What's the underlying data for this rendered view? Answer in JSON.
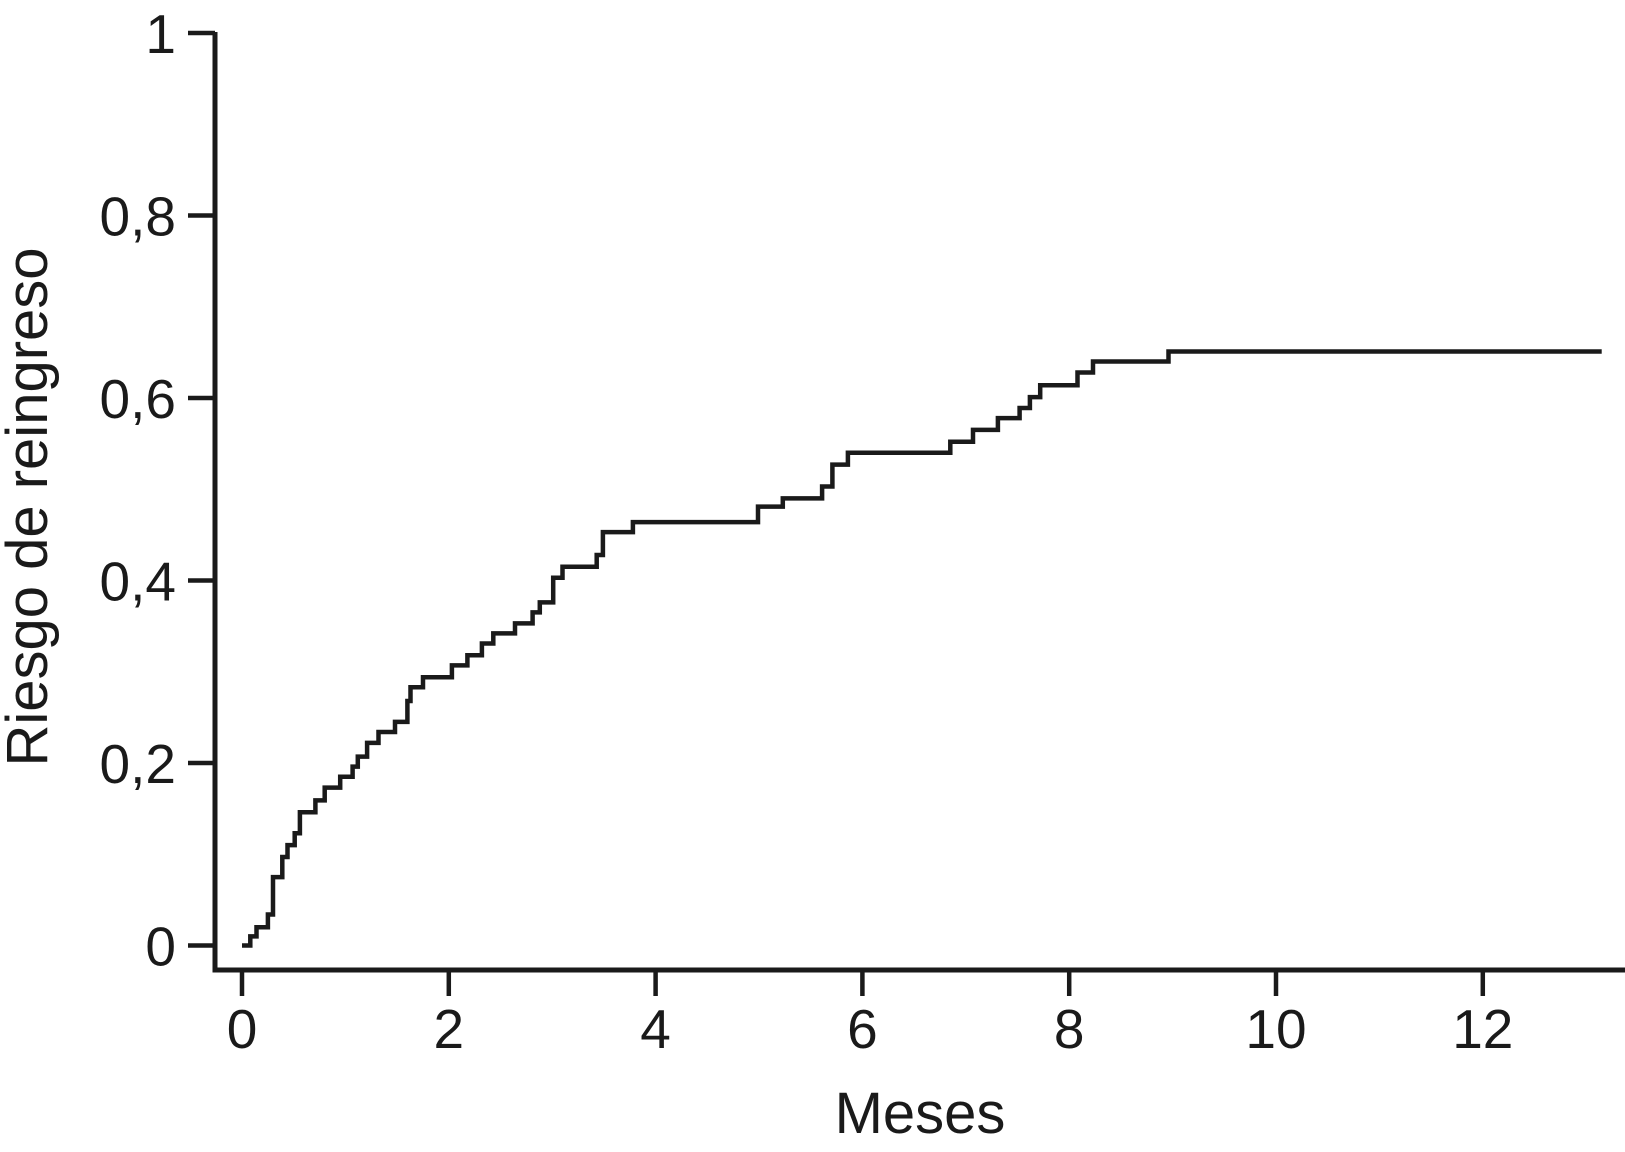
{
  "figure": {
    "background": "#ffffff",
    "ink_color": "#1a1a1a"
  },
  "chart_data": {
    "type": "line",
    "subtype": "step-post-cumulative-incidence",
    "title": "",
    "xlabel": "Meses",
    "ylabel": "Riesgo de reingreso",
    "xlim": [
      0,
      13.4
    ],
    "ylim": [
      0,
      1
    ],
    "grid": false,
    "legend_position": "none",
    "x_ticks": [
      {
        "v": 0,
        "label": "0"
      },
      {
        "v": 2,
        "label": "2"
      },
      {
        "v": 4,
        "label": "4"
      },
      {
        "v": 6,
        "label": "6"
      },
      {
        "v": 8,
        "label": "8"
      },
      {
        "v": 10,
        "label": "10"
      },
      {
        "v": 12,
        "label": "12"
      }
    ],
    "y_ticks": [
      {
        "v": 0,
        "label": "0"
      },
      {
        "v": 0.2,
        "label": "0,2"
      },
      {
        "v": 0.4,
        "label": "0,4"
      },
      {
        "v": 0.6,
        "label": "0,6"
      },
      {
        "v": 0.8,
        "label": "0,8"
      },
      {
        "v": 1,
        "label": "1"
      }
    ],
    "series": [
      {
        "name": "Riesgo de reingreso",
        "step": "post",
        "x": [
          0,
          0.08,
          0.14,
          0.25,
          0.3,
          0.39,
          0.44,
          0.51,
          0.56,
          0.71,
          0.8,
          0.95,
          1.07,
          1.12,
          1.21,
          1.32,
          1.48,
          1.6,
          1.63,
          1.75,
          2.03,
          2.18,
          2.32,
          2.43,
          2.64,
          2.81,
          2.88,
          3.01,
          3.1,
          3.43,
          3.49,
          3.78,
          4.99,
          5.23,
          5.61,
          5.71,
          5.86,
          6.85,
          7.07,
          7.31,
          7.52,
          7.62,
          7.72,
          8.08,
          8.23,
          8.96,
          13.15
        ],
        "y": [
          0,
          0.01,
          0.02,
          0.034,
          0.075,
          0.097,
          0.11,
          0.123,
          0.146,
          0.159,
          0.173,
          0.185,
          0.196,
          0.207,
          0.222,
          0.234,
          0.245,
          0.268,
          0.283,
          0.294,
          0.307,
          0.318,
          0.331,
          0.342,
          0.353,
          0.365,
          0.376,
          0.403,
          0.415,
          0.428,
          0.453,
          0.464,
          0.481,
          0.49,
          0.503,
          0.527,
          0.54,
          0.552,
          0.565,
          0.578,
          0.589,
          0.601,
          0.614,
          0.628,
          0.64,
          0.651,
          0.651
        ]
      }
    ]
  }
}
